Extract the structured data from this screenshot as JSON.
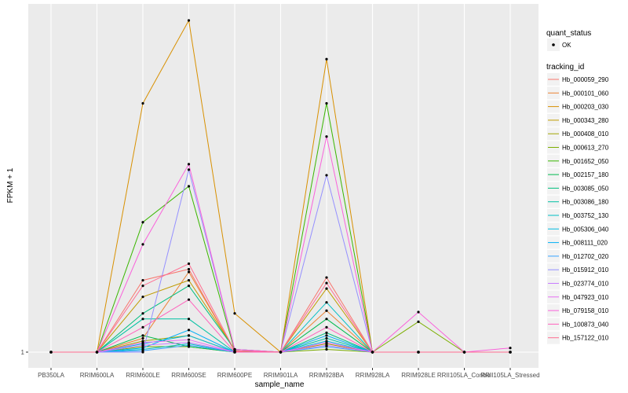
{
  "chart_data": {
    "type": "line",
    "title": "",
    "xlabel": "sample_name",
    "ylabel": "FPKM + 1",
    "y_tick_labels": [
      "1"
    ],
    "ylim": [
      1,
      12.2
    ],
    "categories": [
      "PB350LA",
      "RRIM600LA",
      "RRIM600LE",
      "RRIM600SE",
      "RRIM600PE",
      "RRIM901LA",
      "RRIM928BA",
      "RRIM928LA",
      "RRIM928LE",
      "RRII105LA_Control",
      "RRII105LA_Stressed"
    ],
    "legend": {
      "quant_status_title": "quant_status",
      "quant_status_items": [
        "OK"
      ],
      "tracking_title": "tracking_id"
    },
    "series": [
      {
        "name": "Hb_000059_290",
        "color": "#F8766D",
        "values": [
          1,
          1,
          3.6,
          4.0,
          1.02,
          1,
          3.7,
          1,
          1,
          1,
          1
        ]
      },
      {
        "name": "Hb_000101_060",
        "color": "#EB8335",
        "values": [
          1,
          1,
          1.5,
          3.9,
          1.05,
          1,
          2.5,
          1,
          1,
          1,
          1
        ]
      },
      {
        "name": "Hb_000203_030",
        "color": "#D89000",
        "values": [
          1,
          1,
          10.0,
          13.0,
          2.4,
          1,
          11.6,
          1,
          1,
          1,
          1
        ]
      },
      {
        "name": "Hb_000343_280",
        "color": "#C09B00",
        "values": [
          1,
          1,
          3.0,
          3.6,
          1.1,
          1,
          3.3,
          1,
          1,
          1,
          1
        ]
      },
      {
        "name": "Hb_000408_010",
        "color": "#A3A500",
        "values": [
          1,
          1,
          1.4,
          1.6,
          1.0,
          1,
          1.3,
          1,
          1,
          1,
          1
        ]
      },
      {
        "name": "Hb_000613_270",
        "color": "#7CAE00",
        "values": [
          1,
          1,
          1.2,
          1.2,
          1.0,
          1,
          1.1,
          1,
          2.1,
          1,
          1
        ]
      },
      {
        "name": "Hb_001652_050",
        "color": "#39B600",
        "values": [
          1,
          1,
          5.7,
          7.0,
          1.05,
          1,
          10.0,
          1,
          1,
          1,
          1
        ]
      },
      {
        "name": "Hb_002157_180",
        "color": "#00BB4E",
        "values": [
          1,
          1,
          1.6,
          1.2,
          1.0,
          1,
          2.2,
          1,
          1,
          1,
          1
        ]
      },
      {
        "name": "Hb_003085_050",
        "color": "#00BF7D",
        "values": [
          1,
          1,
          2.4,
          3.4,
          1.1,
          1,
          1.7,
          1,
          1,
          1,
          1
        ]
      },
      {
        "name": "Hb_003086_180",
        "color": "#00C1A3",
        "values": [
          1,
          1,
          2.2,
          2.2,
          1.0,
          1,
          1.5,
          1,
          1,
          1,
          1
        ]
      },
      {
        "name": "Hb_003752_130",
        "color": "#00BFC4",
        "values": [
          1,
          1,
          1.1,
          1.3,
          1.0,
          1,
          2.8,
          1,
          1,
          1,
          1
        ]
      },
      {
        "name": "Hb_005306_040",
        "color": "#00BAE0",
        "values": [
          1,
          1,
          1.3,
          1.6,
          1.0,
          1,
          1.4,
          1,
          1,
          1,
          1
        ]
      },
      {
        "name": "Hb_008111_020",
        "color": "#00B0F6",
        "values": [
          1,
          1,
          1.15,
          1.8,
          1.0,
          1,
          1.6,
          1,
          1,
          1,
          1
        ]
      },
      {
        "name": "Hb_012702_020",
        "color": "#35A2FF",
        "values": [
          1,
          1,
          1.05,
          1.25,
          1.0,
          1,
          1.2,
          1,
          1,
          1,
          1
        ]
      },
      {
        "name": "Hb_015912_010",
        "color": "#9590FF",
        "values": [
          1,
          1,
          1.0,
          7.6,
          1.1,
          1,
          7.4,
          1,
          1,
          1,
          1
        ]
      },
      {
        "name": "Hb_023774_010",
        "color": "#C77CFF",
        "values": [
          1,
          1,
          1.25,
          1.35,
          1.0,
          1,
          1.25,
          1,
          1,
          1,
          1
        ]
      },
      {
        "name": "Hb_047923_010",
        "color": "#E76BF3",
        "values": [
          1,
          1,
          1.35,
          1.45,
          1.0,
          1,
          1.35,
          1,
          1,
          1,
          1
        ]
      },
      {
        "name": "Hb_079158_010",
        "color": "#FA62DB",
        "values": [
          1,
          1,
          4.9,
          7.8,
          1.1,
          1,
          8.8,
          1,
          2.45,
          1,
          1.15
        ]
      },
      {
        "name": "Hb_100873_040",
        "color": "#FF62BC",
        "values": [
          1,
          1,
          1.9,
          2.9,
          1.0,
          1,
          1.9,
          1,
          1,
          1,
          1
        ]
      },
      {
        "name": "Hb_157122_010",
        "color": "#FF6C91",
        "values": [
          1,
          1,
          3.4,
          4.2,
          1.05,
          1,
          3.5,
          1,
          1,
          1,
          1
        ]
      }
    ]
  }
}
